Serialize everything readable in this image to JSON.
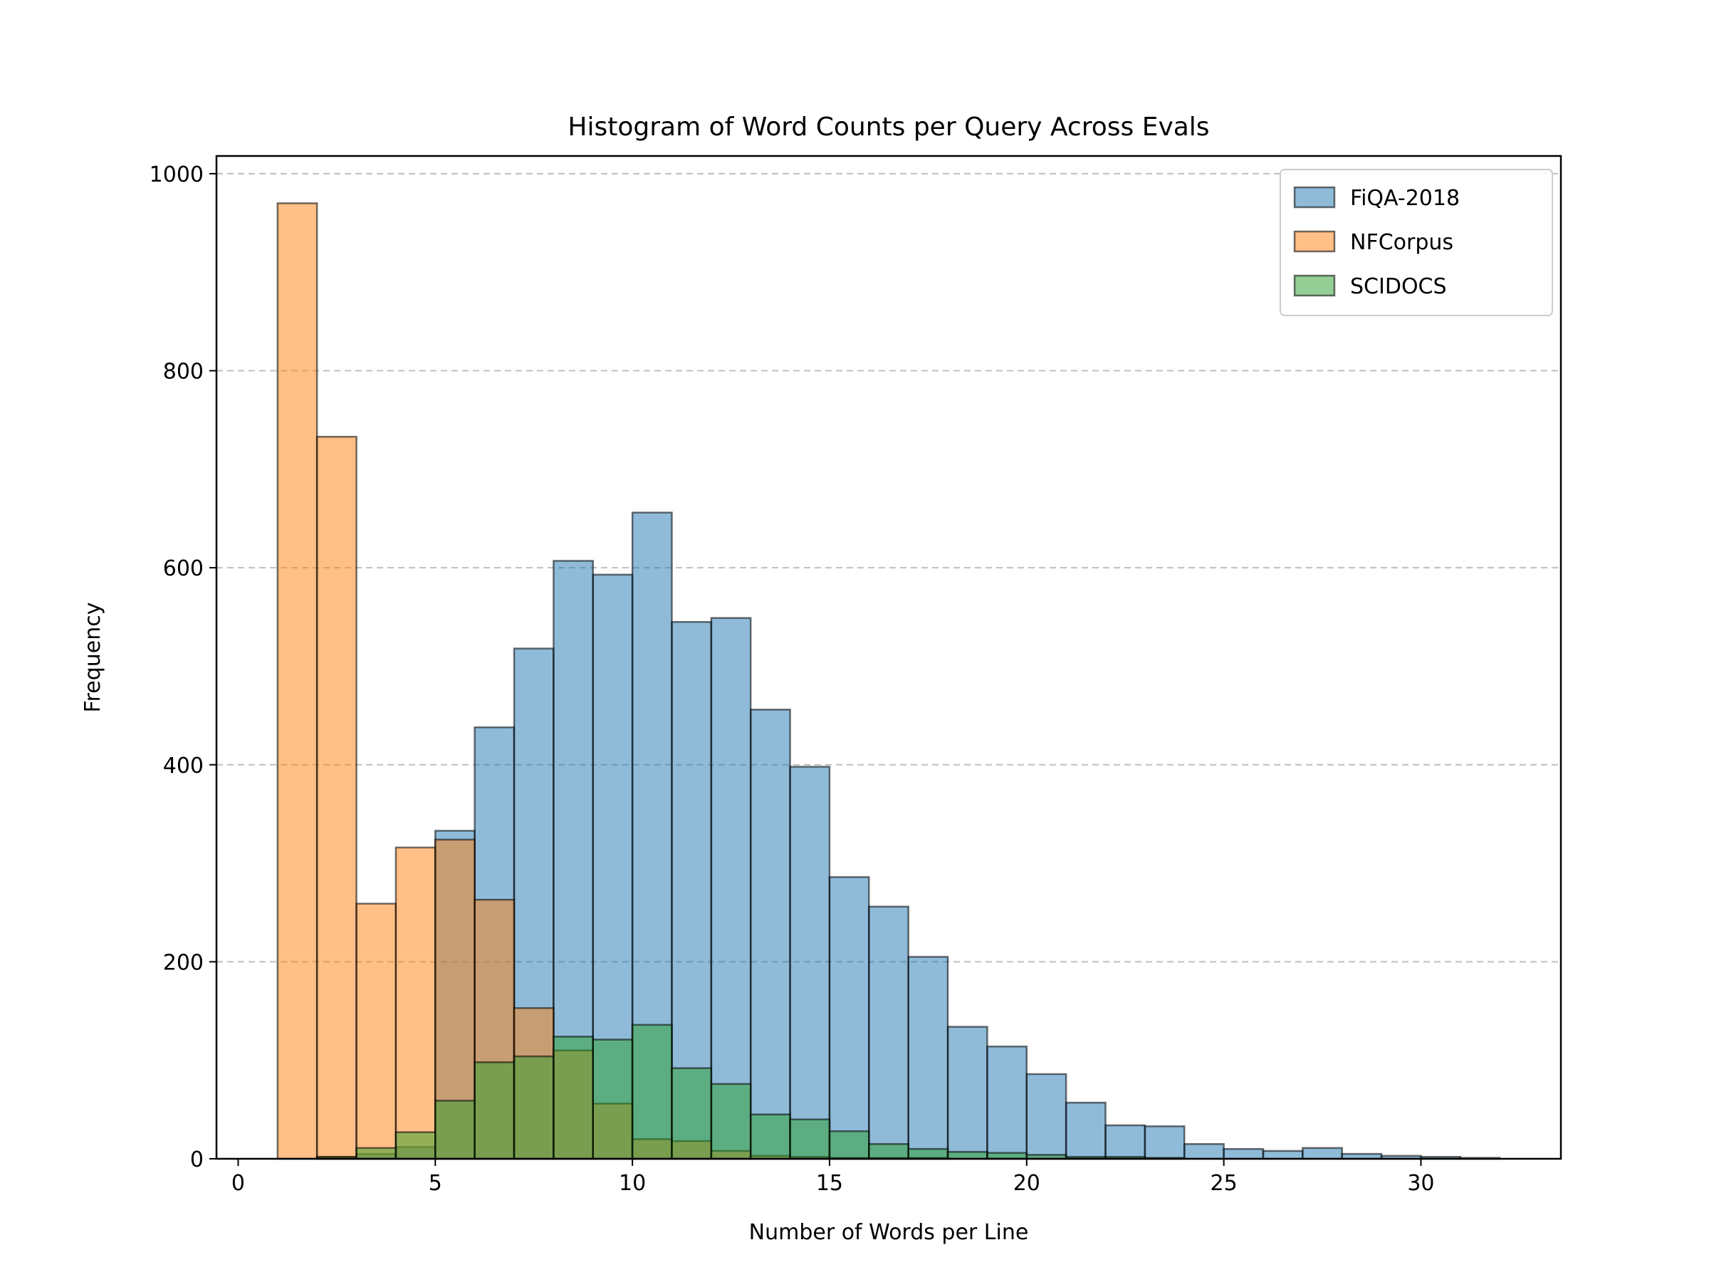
{
  "chart_data": {
    "type": "bar",
    "title": "Histogram of Word Counts per Query Across Evals",
    "xlabel": "Number of Words per Line",
    "ylabel": "Frequency",
    "xlim": [
      -0.55,
      33.55
    ],
    "ylim": [
      0,
      1018
    ],
    "xticks": [
      0,
      5,
      10,
      15,
      20,
      25,
      30
    ],
    "yticks": [
      0,
      200,
      400,
      600,
      800,
      1000
    ],
    "grid": "y-dashed",
    "legend_position": "top-right",
    "bin_edges": [
      1,
      2,
      3,
      4,
      5,
      6,
      7,
      8,
      9,
      10,
      11,
      12,
      13,
      14,
      15,
      16,
      17,
      18,
      19,
      20,
      21,
      22,
      23,
      24,
      25,
      26,
      27,
      28,
      29,
      30,
      31,
      32
    ],
    "series": [
      {
        "name": "FiQA-2018",
        "color": "#1f77b4",
        "values": [
          0,
          2,
          5,
          12,
          333,
          438,
          518,
          607,
          593,
          656,
          545,
          549,
          456,
          398,
          286,
          256,
          205,
          134,
          114,
          86,
          57,
          34,
          33,
          15,
          10,
          8,
          11,
          5,
          3,
          2,
          1
        ]
      },
      {
        "name": "NFCorpus",
        "color": "#ff7f0e",
        "values": [
          970,
          733,
          259,
          316,
          324,
          263,
          153,
          110,
          56,
          20,
          18,
          8,
          3,
          2,
          1,
          1,
          1,
          0,
          0,
          0,
          0,
          0,
          0,
          0,
          0,
          0,
          0,
          0,
          0,
          0,
          0
        ]
      },
      {
        "name": "SCIDOCS",
        "color": "#2ca02c",
        "values": [
          0,
          2,
          11,
          27,
          59,
          98,
          104,
          124,
          121,
          136,
          92,
          76,
          45,
          40,
          28,
          15,
          10,
          7,
          6,
          4,
          2,
          2,
          1,
          0,
          0,
          0,
          0,
          0,
          0,
          0,
          0
        ]
      }
    ]
  }
}
